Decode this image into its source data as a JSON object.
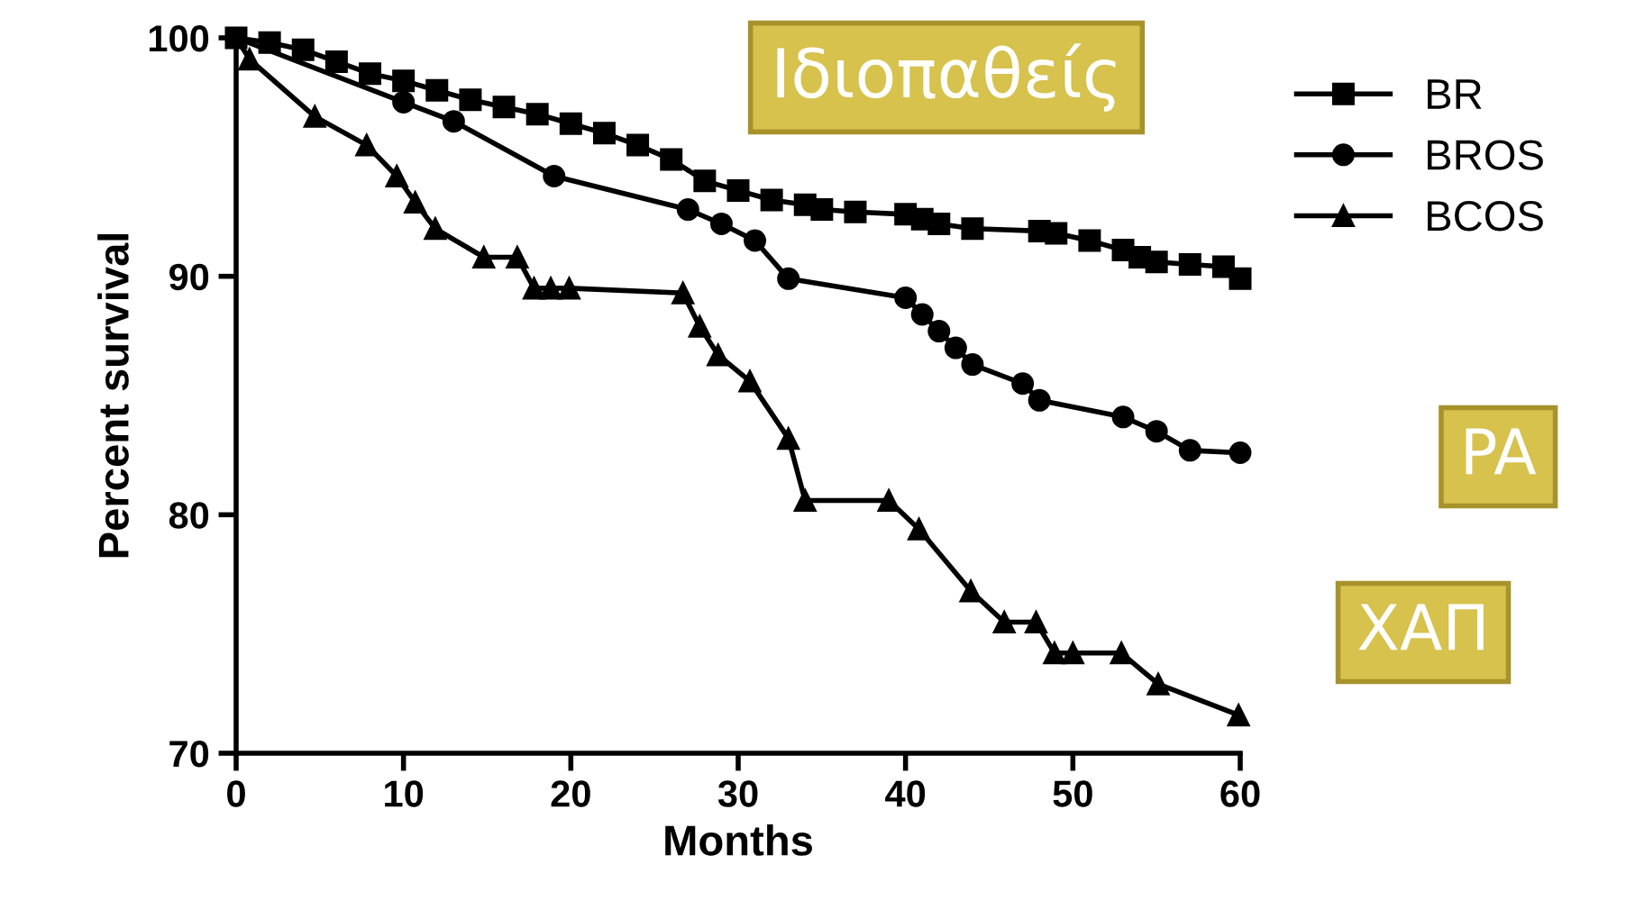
{
  "chart_data": {
    "type": "line",
    "xlabel": "Months",
    "ylabel": "Percent survival",
    "xlim": [
      0,
      60
    ],
    "ylim": [
      70,
      100
    ],
    "xticks": [
      0,
      10,
      20,
      30,
      40,
      50,
      60
    ],
    "yticks": [
      70,
      80,
      90,
      100
    ],
    "grid": false,
    "legend": "top right",
    "line_style": "solid",
    "annotations": [
      "Ιδιοπαθείς",
      "PA",
      "ΧΑΠ"
    ],
    "series": [
      {
        "name": "BR",
        "color": "#000000",
        "marker": "square",
        "x": [
          0,
          2,
          4,
          6,
          8,
          10,
          12,
          14,
          16,
          18,
          20,
          22,
          24,
          26,
          28,
          30,
          32,
          34,
          35,
          37,
          40,
          41,
          42,
          44,
          48,
          49,
          51,
          53,
          54,
          55,
          57,
          59,
          60
        ],
        "values": [
          100,
          99.8,
          99.5,
          99.0,
          98.5,
          98.2,
          97.8,
          97.4,
          97.1,
          96.8,
          96.4,
          96.0,
          95.5,
          94.9,
          94.0,
          93.6,
          93.2,
          93.0,
          92.8,
          92.7,
          92.6,
          92.4,
          92.2,
          92.0,
          91.9,
          91.8,
          91.5,
          91.1,
          90.8,
          90.6,
          90.5,
          90.4,
          89.9
        ]
      },
      {
        "name": "BROS",
        "color": "#000000",
        "marker": "circle",
        "x": [
          0,
          10,
          13,
          19,
          27,
          29,
          31,
          33,
          40,
          41,
          42,
          43,
          44,
          47,
          48,
          53,
          55,
          57,
          60
        ],
        "values": [
          100,
          97.3,
          96.5,
          94.2,
          92.8,
          92.2,
          91.5,
          89.9,
          89.1,
          88.4,
          87.7,
          87.0,
          86.3,
          85.5,
          84.8,
          84.1,
          83.5,
          82.7,
          82.6
        ]
      },
      {
        "name": "BCOS",
        "color": "#000000",
        "marker": "triangle",
        "x": [
          0,
          0.8,
          4.7,
          7.8,
          9.6,
          10.7,
          11.9,
          14.8,
          16.8,
          17.8,
          18.8,
          19.9,
          26.7,
          27.7,
          28.8,
          30.7,
          33.0,
          34.0,
          39.0,
          40.8,
          43.9,
          45.9,
          47.8,
          48.9,
          50.0,
          52.9,
          55.1,
          59.9
        ],
        "values": [
          100,
          99.1,
          96.7,
          95.5,
          94.2,
          93.1,
          92.0,
          90.8,
          90.8,
          89.5,
          89.5,
          89.5,
          89.3,
          87.9,
          86.7,
          85.6,
          83.2,
          80.6,
          80.6,
          79.4,
          76.8,
          75.5,
          75.5,
          74.2,
          74.2,
          74.2,
          72.9,
          71.6
        ]
      }
    ]
  }
}
